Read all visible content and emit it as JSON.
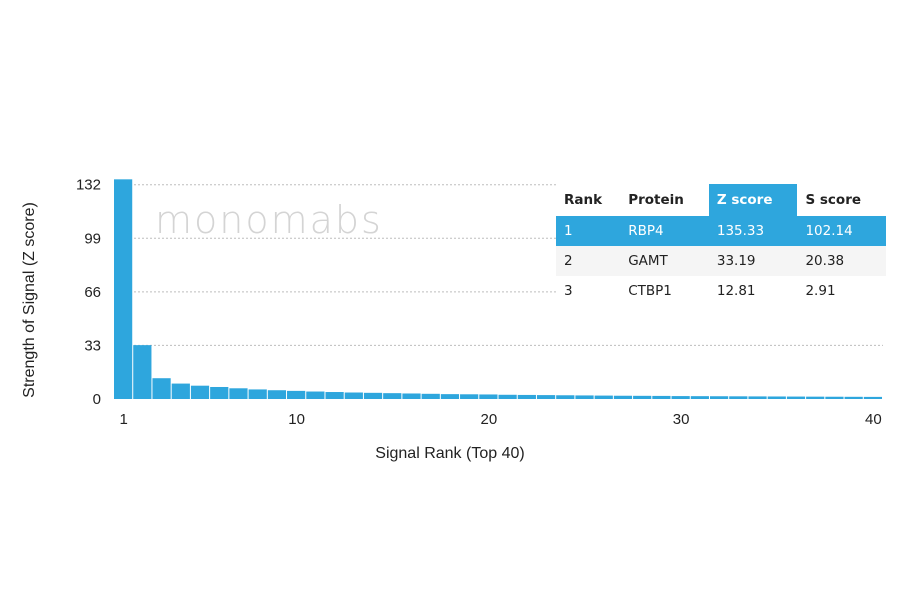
{
  "watermark": "monomabs",
  "chart_data": {
    "type": "bar",
    "title": "",
    "xlabel": "Signal Rank (Top 40)",
    "ylabel": "Strength of Signal (Z score)",
    "ylim": [
      0,
      138
    ],
    "yticks": [
      0,
      33,
      66,
      99,
      132
    ],
    "xticks": [
      1,
      10,
      20,
      30,
      40
    ],
    "grid": "horizontal-dotted",
    "color": "#2ea6dd",
    "categories": [
      1,
      2,
      3,
      4,
      5,
      6,
      7,
      8,
      9,
      10,
      11,
      12,
      13,
      14,
      15,
      16,
      17,
      18,
      19,
      20,
      21,
      22,
      23,
      24,
      25,
      26,
      27,
      28,
      29,
      30,
      31,
      32,
      33,
      34,
      35,
      36,
      37,
      38,
      39,
      40
    ],
    "values": [
      135.33,
      33.19,
      12.81,
      9.5,
      8.2,
      7.4,
      6.6,
      5.9,
      5.4,
      5.0,
      4.6,
      4.3,
      4.0,
      3.8,
      3.6,
      3.4,
      3.2,
      3.0,
      2.9,
      2.8,
      2.6,
      2.5,
      2.4,
      2.3,
      2.2,
      2.1,
      2.0,
      1.95,
      1.9,
      1.8,
      1.75,
      1.7,
      1.65,
      1.6,
      1.55,
      1.5,
      1.45,
      1.4,
      1.35,
      1.3
    ]
  },
  "table": {
    "headers": [
      "Rank",
      "Protein",
      "Z score",
      "S score"
    ],
    "rows": [
      [
        "1",
        "RBP4",
        "135.33",
        "102.14"
      ],
      [
        "2",
        "GAMT",
        "33.19",
        "20.38"
      ],
      [
        "3",
        "CTBP1",
        "12.81",
        "2.91"
      ]
    ]
  }
}
